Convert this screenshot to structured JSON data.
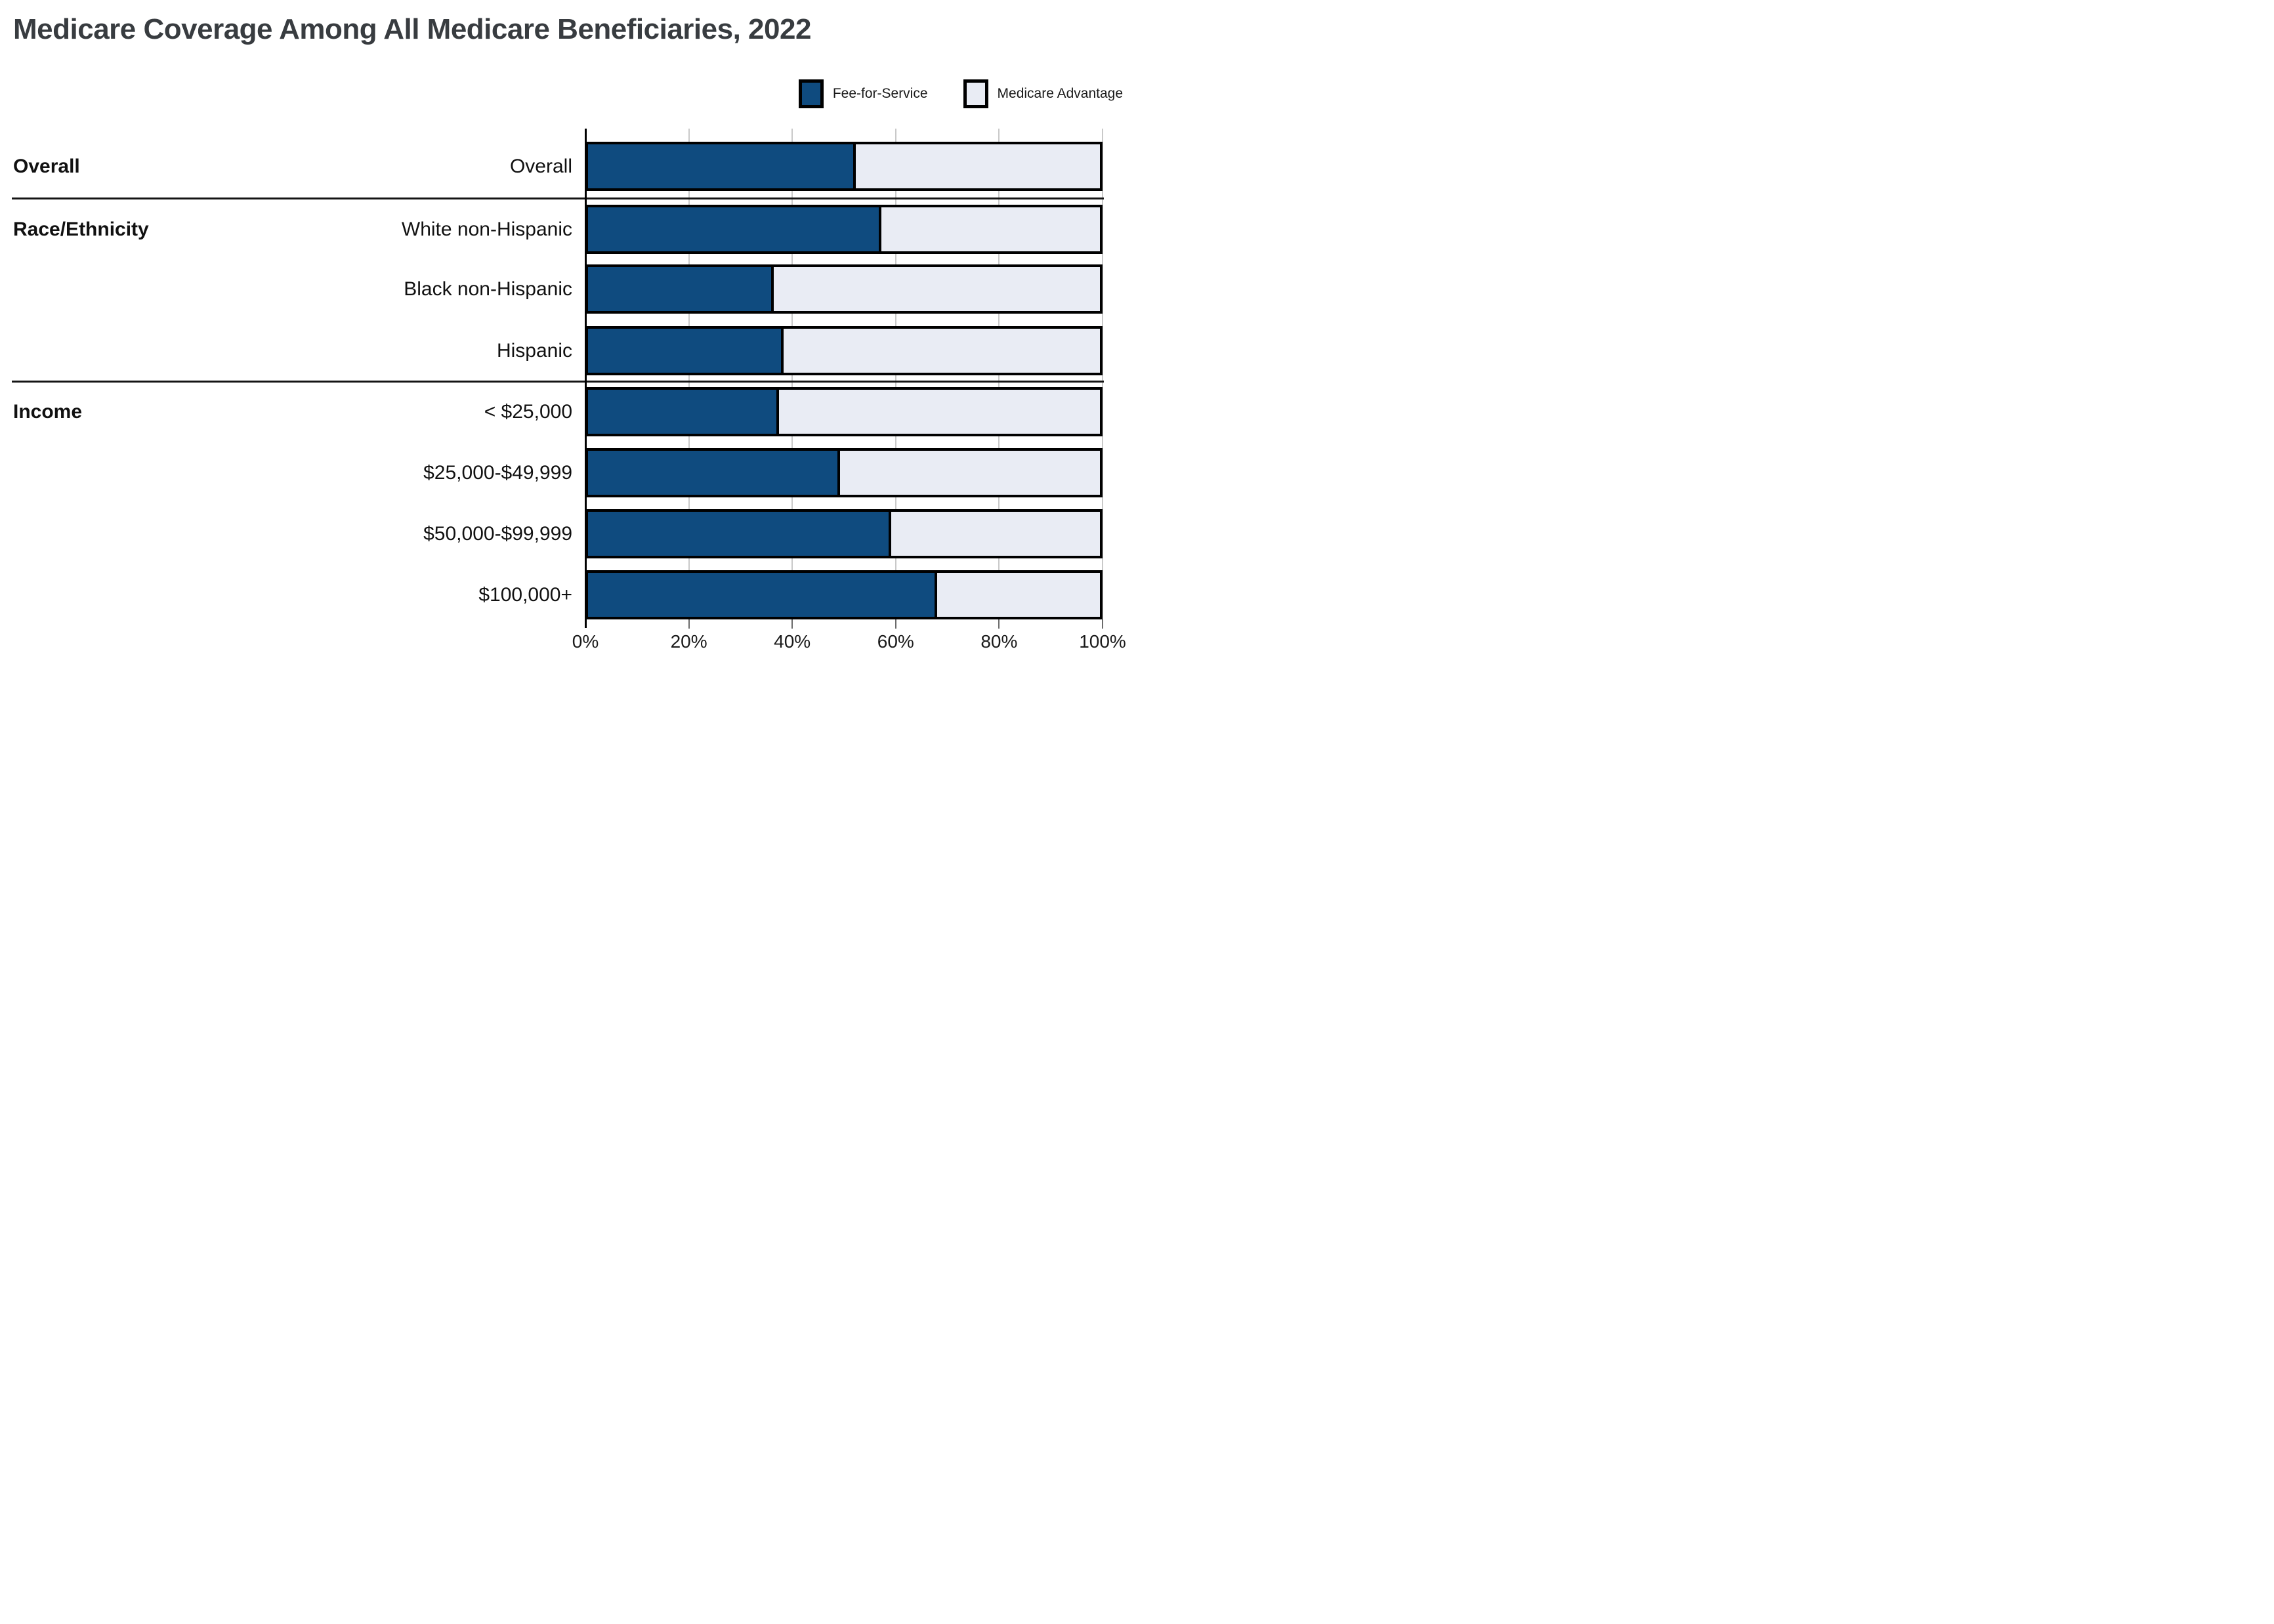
{
  "title": "Medicare Coverage Among All Medicare Beneficiaries, 2022",
  "legend": [
    {
      "label": "Fee-for-Service",
      "color": "#0f4b7f"
    },
    {
      "label": "Medicare Advantage",
      "color": "#e9ecf4"
    }
  ],
  "colors": {
    "fee_for_service": "#0f4b7f",
    "medicare_advantage": "#e9ecf4",
    "bar_border": "#000000",
    "gridline": "#c9c9c9",
    "title_text": "#383c40"
  },
  "chart_data": {
    "type": "bar",
    "orientation": "horizontal",
    "stacked": true,
    "unit": "%",
    "title": "Medicare Coverage Among All Medicare Beneficiaries, 2022",
    "xlabel": "",
    "ylabel": "",
    "xlim": [
      0,
      100
    ],
    "x_ticks": [
      "0%",
      "20%",
      "40%",
      "60%",
      "80%",
      "100%"
    ],
    "grid": true,
    "legend_position": "top-right",
    "sections": [
      {
        "label": "Overall",
        "rows": [
          "Overall"
        ]
      },
      {
        "label": "Race/Ethnicity",
        "rows": [
          "White non-Hispanic",
          "Black non-Hispanic",
          "Hispanic"
        ]
      },
      {
        "label": "Income",
        "rows": [
          "< $25,000",
          "$25,000-$49,999",
          "$50,000-$99,999",
          "$100,000+"
        ]
      }
    ],
    "categories": [
      "Overall",
      "White non-Hispanic",
      "Black non-Hispanic",
      "Hispanic",
      "< $25,000",
      "$25,000-$49,999",
      "$50,000-$99,999",
      "$100,000+"
    ],
    "series": [
      {
        "name": "Fee-for-Service",
        "values": [
          52,
          57,
          36,
          38,
          37,
          49,
          59,
          68
        ]
      },
      {
        "name": "Medicare Advantage",
        "values": [
          48,
          43,
          64,
          62,
          63,
          51,
          41,
          32
        ]
      }
    ]
  }
}
